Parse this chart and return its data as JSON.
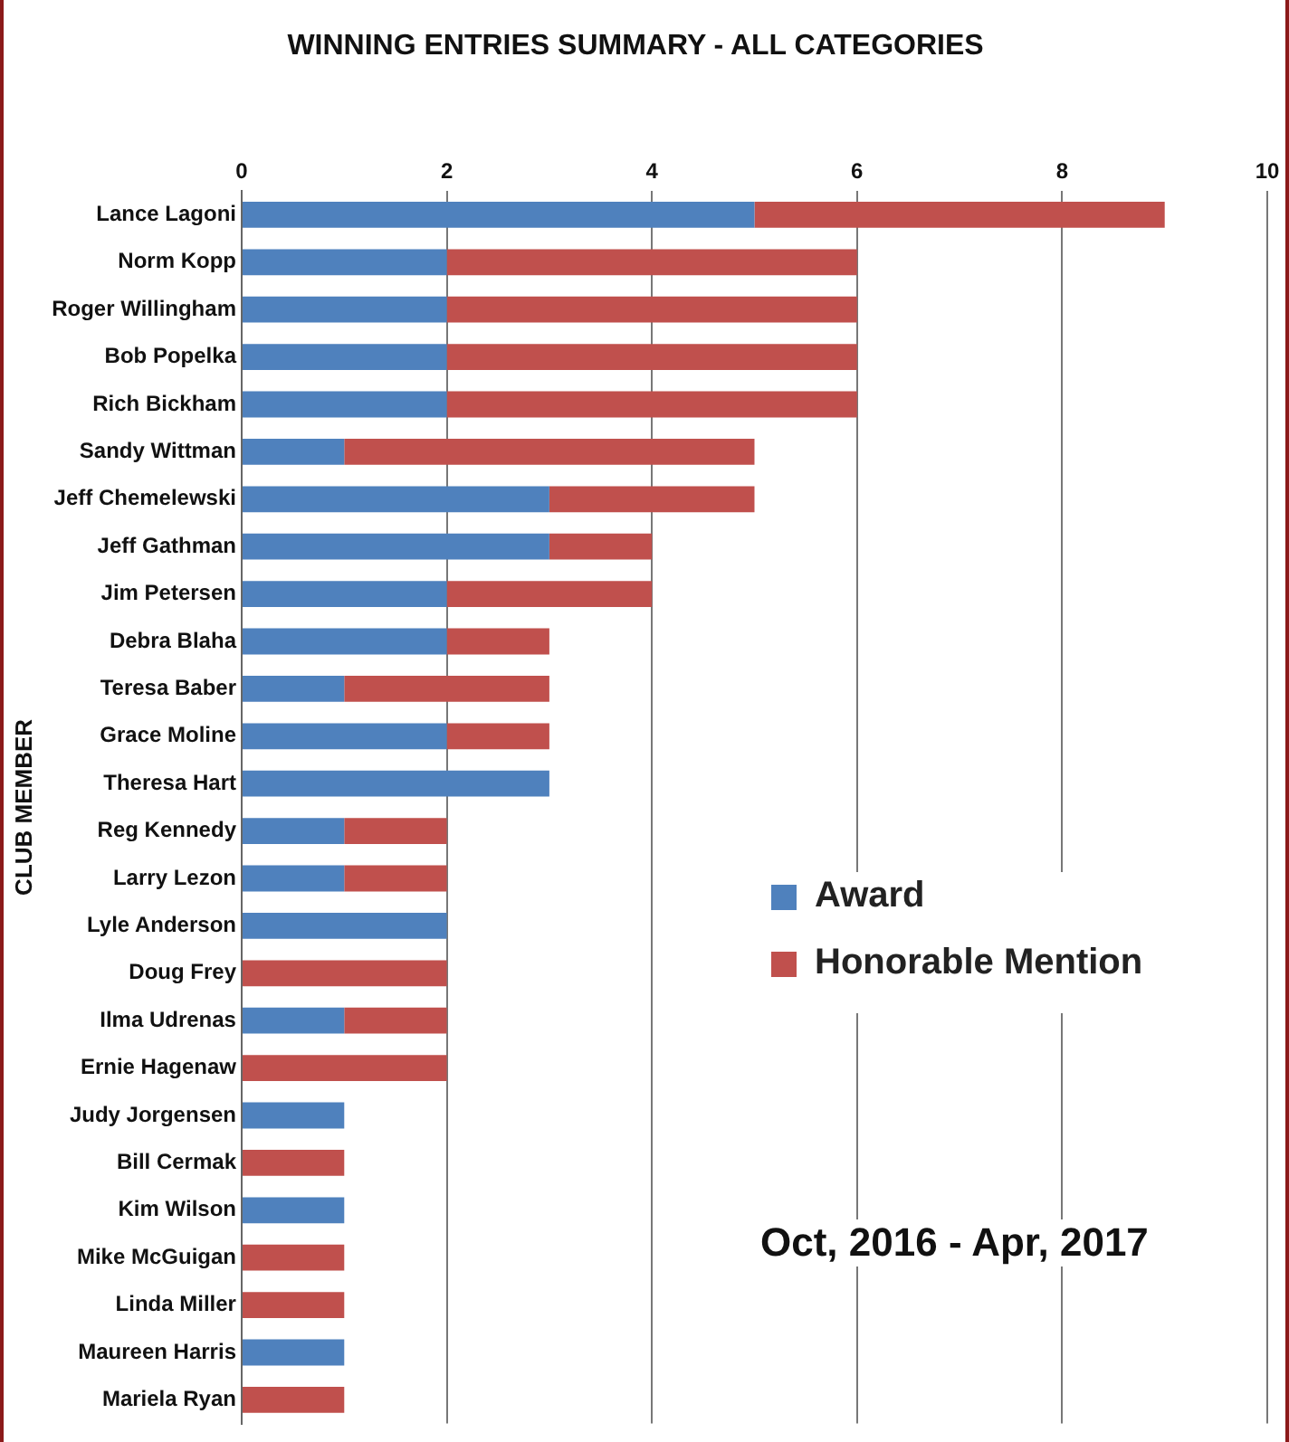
{
  "chart_data": {
    "type": "bar",
    "orientation": "horizontal",
    "stacked": true,
    "title": "WINNING ENTRIES SUMMARY - ALL CATEGORIES",
    "ylabel": "CLUB MEMBER",
    "categories": [
      "Lance Lagoni",
      "Norm Kopp",
      "Roger Willingham",
      "Bob Popelka",
      "Rich Bickham",
      "Sandy Wittman",
      "Jeff Chemelewski",
      "Jeff Gathman",
      "Jim Petersen",
      "Debra Blaha",
      "Teresa Baber",
      "Grace Moline",
      "Theresa Hart",
      "Reg Kennedy",
      "Larry Lezon",
      "Lyle Anderson",
      "Doug Frey",
      "Ilma Udrenas",
      "Ernie Hagenaw",
      "Judy Jorgensen",
      "Bill Cermak",
      "Kim Wilson",
      "Mike McGuigan",
      "Linda Miller",
      "Maureen Harris",
      "Mariela Ryan"
    ],
    "series": [
      {
        "name": "Award",
        "color": "#4f81bd",
        "values": [
          5,
          2,
          2,
          2,
          2,
          1,
          3,
          3,
          2,
          2,
          1,
          2,
          3,
          1,
          1,
          2,
          0,
          1,
          0,
          1,
          0,
          1,
          0,
          0,
          1,
          0
        ]
      },
      {
        "name": "Honorable Mention",
        "color": "#c0504d",
        "values": [
          4,
          4,
          4,
          4,
          4,
          4,
          2,
          1,
          2,
          1,
          2,
          1,
          0,
          1,
          1,
          0,
          2,
          1,
          2,
          0,
          1,
          0,
          1,
          1,
          0,
          1
        ]
      }
    ],
    "xlim": [
      0,
      10
    ],
    "xticks": [
      0,
      2,
      4,
      6,
      8,
      10
    ],
    "grid": "x",
    "legend": "right",
    "annotations": [
      "Oct, 2016 - Apr, 2017"
    ]
  }
}
